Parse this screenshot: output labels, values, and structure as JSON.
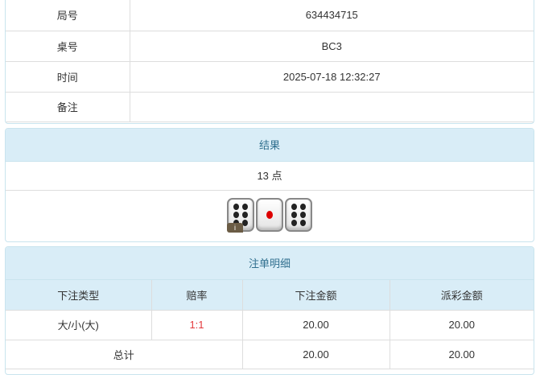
{
  "info": {
    "rows": [
      {
        "label": "局号",
        "value": "634434715"
      },
      {
        "label": "桌号",
        "value": "BC3"
      },
      {
        "label": "时间",
        "value": "2025-07-18 12:32:27"
      },
      {
        "label": "备注",
        "value": ""
      }
    ]
  },
  "result": {
    "title": "结果",
    "points": "13 点",
    "dice": [
      6,
      1,
      6
    ],
    "info_badge": "i"
  },
  "bets": {
    "title": "注单明细",
    "headers": [
      "下注类型",
      "赔率",
      "下注金额",
      "派彩金额"
    ],
    "rows": [
      {
        "type": "大/小(大)",
        "odds": "1:1",
        "amount": "20.00",
        "payout": "20.00"
      }
    ],
    "total": {
      "label": "总计",
      "amount": "20.00",
      "payout": "20.00"
    }
  },
  "colors": {
    "header_bg": "#d9edf7",
    "header_text": "#31708f",
    "odds": "#e4393c"
  }
}
